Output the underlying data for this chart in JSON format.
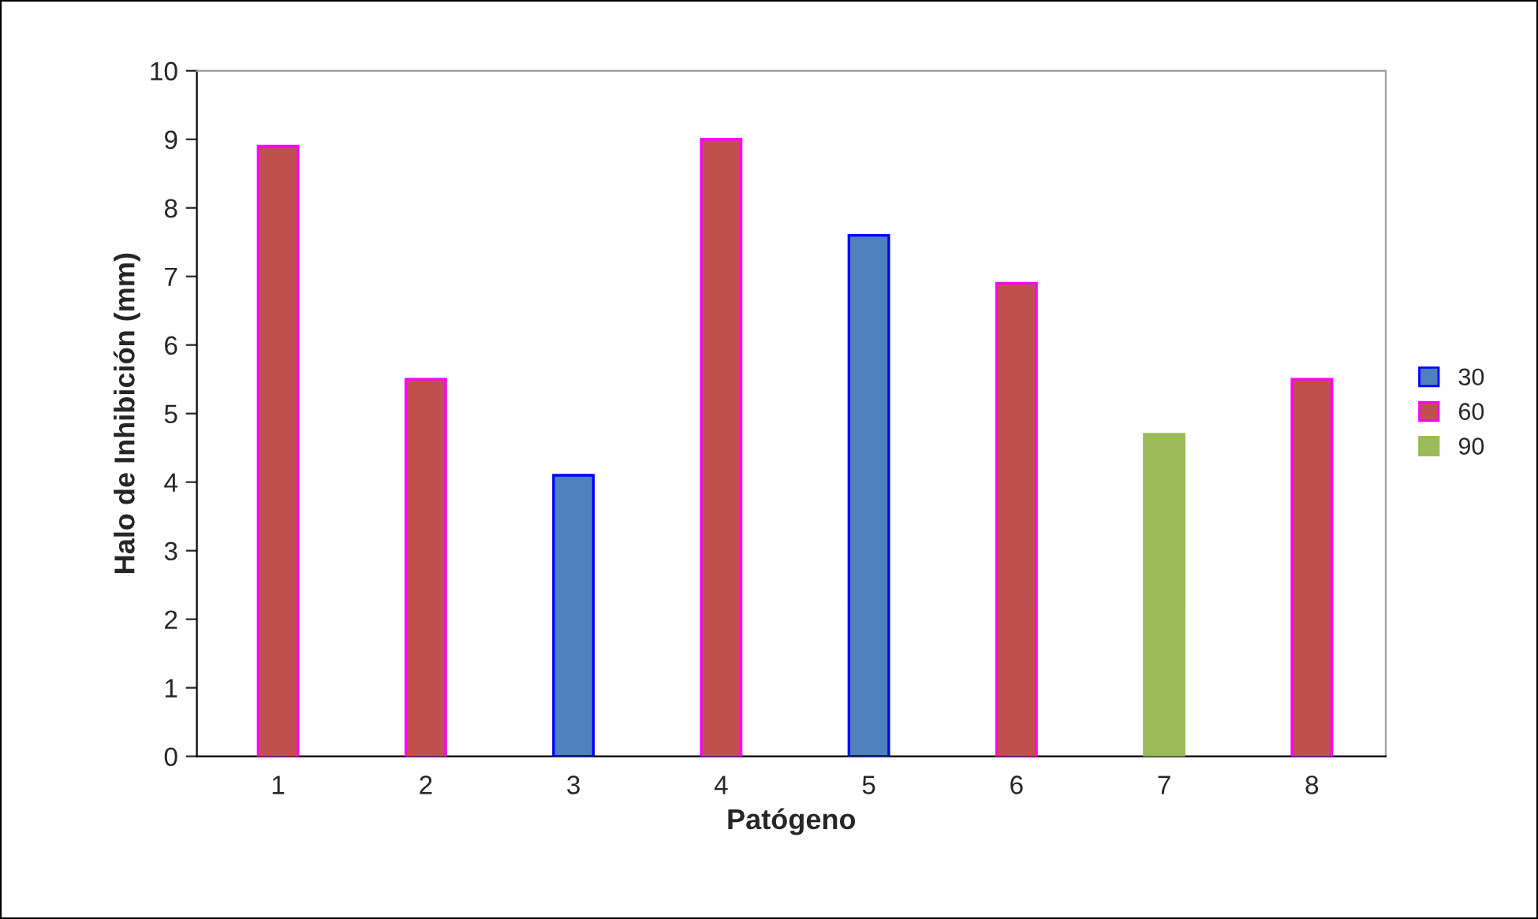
{
  "chart_data": {
    "type": "bar",
    "xlabel": "Patógeno",
    "ylabel": "Halo de Inhibición (mm)",
    "categories": [
      "1",
      "2",
      "3",
      "4",
      "5",
      "6",
      "7",
      "8"
    ],
    "series": [
      {
        "name": "30",
        "color": "#4f81bd",
        "values": [
          null,
          null,
          4.1,
          null,
          7.6,
          null,
          null,
          null
        ]
      },
      {
        "name": "60",
        "color": "#c0504d",
        "values": [
          8.9,
          5.5,
          null,
          9.0,
          null,
          6.9,
          null,
          5.5
        ]
      },
      {
        "name": "90",
        "color": "#9bbb59",
        "values": [
          null,
          null,
          null,
          null,
          null,
          null,
          4.7,
          null
        ]
      }
    ],
    "ylim": [
      0,
      10
    ],
    "yticks": [
      0,
      1,
      2,
      3,
      4,
      5,
      6,
      7,
      8,
      9,
      10
    ],
    "grid": false,
    "legend": "right"
  }
}
